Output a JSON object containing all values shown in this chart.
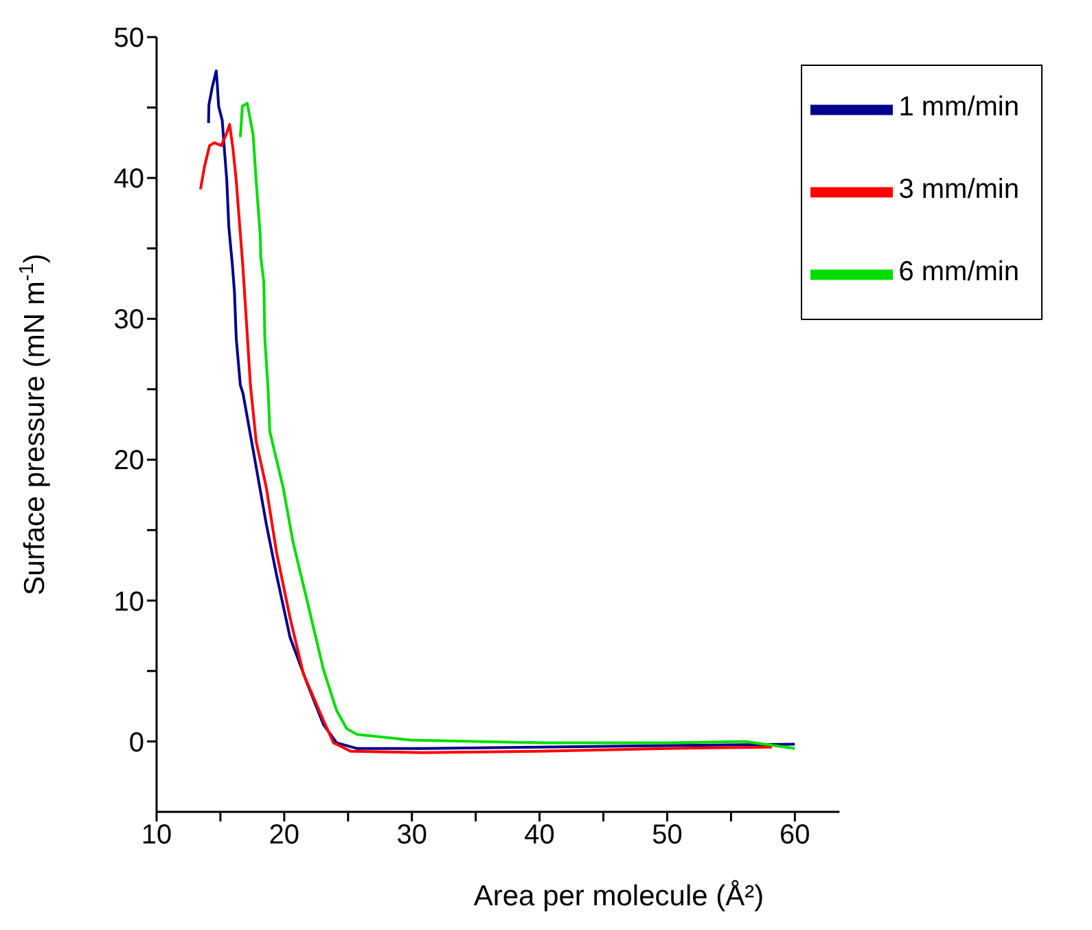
{
  "chart_data": {
    "type": "line",
    "xlabel": "Area per molecule (Å²)",
    "ylabel": "Surface pressure (mN m$^{-1}$)",
    "xlim": [
      10,
      63.5
    ],
    "xticks": [
      10,
      {
        "value": 15,
        "label": null
      },
      20,
      {
        "value": 25,
        "label": null
      },
      30,
      {
        "value": 35,
        "label": null
      },
      40,
      {
        "value": 45,
        "label": null
      },
      50,
      {
        "value": 55,
        "label": null
      },
      60
    ],
    "ylim": [
      -5,
      50
    ],
    "yticks": [
      0,
      {
        "value": 5,
        "label": null
      },
      10,
      {
        "value": 15,
        "label": null
      },
      20,
      {
        "value": 25,
        "label": null
      },
      30,
      {
        "value": 35,
        "label": null
      },
      40,
      {
        "value": 45,
        "label": null
      },
      50
    ],
    "grid": false,
    "legend": "top right",
    "marker": "none",
    "line_style": "solid",
    "series": [
      {
        "name": "1 mm/min",
        "color": "#00008b",
        "x": [
          14.07,
          14.1,
          14.35,
          14.67,
          14.75,
          14.86,
          15.14,
          15.33,
          15.5,
          15.66,
          15.93,
          16.1,
          16.24,
          16.56,
          16.77,
          17.56,
          18.6,
          19.4,
          20.45,
          21.76,
          23.07,
          24.1,
          25.7,
          30.9,
          40,
          50,
          60
        ],
        "values": [
          43.9,
          45.2,
          46.4,
          47.6,
          46.7,
          45.1,
          44.1,
          41.8,
          39.8,
          36.5,
          33.9,
          31.9,
          28.6,
          25.3,
          24.7,
          20.7,
          15.4,
          11.8,
          7.4,
          4.2,
          1.2,
          -0.1,
          -0.5,
          -0.5,
          -0.4,
          -0.3,
          -0.2
        ]
      },
      {
        "name": "3 mm/min",
        "color": "#ff0000",
        "x": [
          13.44,
          13.75,
          14.15,
          14.54,
          15.06,
          15.46,
          15.72,
          15.98,
          16.24,
          16.46,
          16.72,
          17.03,
          17.35,
          17.8,
          18.6,
          19.4,
          20.45,
          21.5,
          23.07,
          23.86,
          25.2,
          30.9,
          40,
          50,
          58.2
        ],
        "values": [
          39.2,
          40.8,
          42.3,
          42.5,
          42.3,
          43.1,
          43.8,
          42.1,
          39.8,
          37.2,
          34.2,
          29.9,
          25.3,
          21.3,
          18,
          13.4,
          8.8,
          4.8,
          1.5,
          -0.1,
          -0.7,
          -0.8,
          -0.7,
          -0.5,
          -0.4
        ]
      },
      {
        "name": "6 mm/min",
        "color": "#00dd00",
        "x": [
          16.56,
          16.72,
          17.1,
          17.56,
          17.8,
          18.13,
          18.16,
          18.4,
          18.48,
          18.74,
          18.87,
          19.92,
          20.7,
          21.76,
          23.07,
          24.1,
          24.9,
          25.7,
          29.9,
          40.4,
          50,
          56.1,
          60
        ],
        "values": [
          42.9,
          45.1,
          45.3,
          43.1,
          39.8,
          35.8,
          34.4,
          32.6,
          28.6,
          24.9,
          22,
          18,
          14.1,
          10.1,
          5.1,
          2.2,
          0.9,
          0.5,
          0.1,
          -0.1,
          -0.1,
          0,
          -0.5
        ]
      }
    ]
  }
}
